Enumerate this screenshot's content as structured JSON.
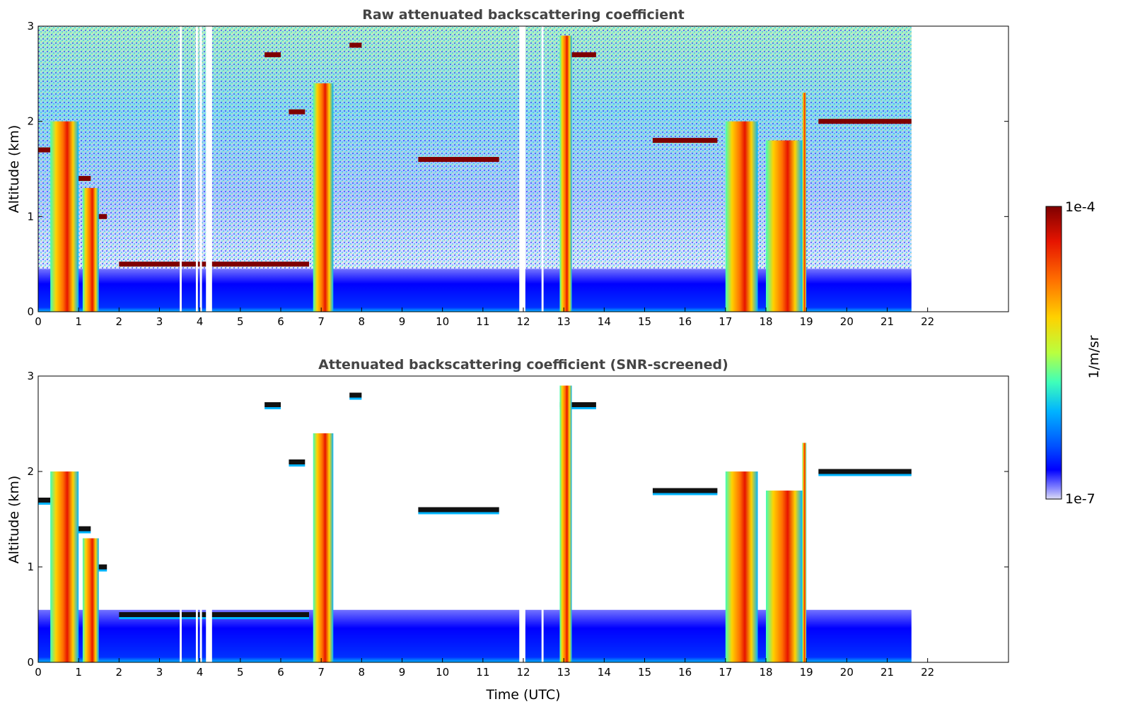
{
  "chart_data": [
    {
      "type": "heatmap",
      "title": "Raw attenuated backscattering coefficient",
      "xlabel": "",
      "ylabel": "Altitude (km)",
      "xlim": [
        0,
        24
      ],
      "ylim": [
        0,
        3
      ],
      "xticks": [
        "0",
        "1",
        "2",
        "3",
        "4",
        "5",
        "6",
        "7",
        "8",
        "9",
        "10",
        "11",
        "12",
        "13",
        "14",
        "15",
        "16",
        "17",
        "18",
        "19",
        "20",
        "21",
        "22"
      ],
      "yticks": [
        "0",
        "1",
        "2",
        "3"
      ],
      "data_end_time": 21.6,
      "boundary_layer_top_km": 0.45,
      "missing_data_intervals": [
        [
          3.5,
          3.55
        ],
        [
          3.9,
          3.95
        ],
        [
          4.0,
          4.05
        ],
        [
          4.15,
          4.3
        ],
        [
          11.9,
          12.05
        ],
        [
          12.45,
          12.5
        ]
      ],
      "precipitation_columns": [
        {
          "start": 0.3,
          "end": 1.0,
          "top_km": 2.0
        },
        {
          "start": 1.1,
          "end": 1.5,
          "top_km": 1.3
        },
        {
          "start": 6.8,
          "end": 7.3,
          "top_km": 2.4
        },
        {
          "start": 12.9,
          "end": 13.2,
          "top_km": 2.9
        },
        {
          "start": 17.0,
          "end": 17.8,
          "top_km": 2.0
        },
        {
          "start": 18.0,
          "end": 18.9,
          "top_km": 1.8
        },
        {
          "start": 18.9,
          "end": 19.0,
          "top_km": 2.3
        }
      ],
      "cloud_layers": [
        {
          "start": 0.0,
          "end": 0.3,
          "alt_km": 1.7
        },
        {
          "start": 0.6,
          "end": 1.3,
          "alt_km": 1.4
        },
        {
          "start": 1.3,
          "end": 1.7,
          "alt_km": 1.0
        },
        {
          "start": 2.0,
          "end": 4.5,
          "alt_km": 0.5
        },
        {
          "start": 4.3,
          "end": 6.7,
          "alt_km": 0.5
        },
        {
          "start": 5.6,
          "end": 6.0,
          "alt_km": 2.7
        },
        {
          "start": 6.2,
          "end": 6.6,
          "alt_km": 2.1
        },
        {
          "start": 7.7,
          "end": 8.0,
          "alt_km": 2.8
        },
        {
          "start": 9.4,
          "end": 11.4,
          "alt_km": 1.6
        },
        {
          "start": 12.9,
          "end": 13.8,
          "alt_km": 2.7
        },
        {
          "start": 15.2,
          "end": 16.8,
          "alt_km": 1.8
        },
        {
          "start": 19.3,
          "end": 21.6,
          "alt_km": 2.0
        }
      ]
    },
    {
      "type": "heatmap",
      "title": "Attenuated backscattering coefficient (SNR-screened)",
      "xlabel": "Time (UTC)",
      "ylabel": "Altitude (km)",
      "xlim": [
        0,
        24
      ],
      "ylim": [
        0,
        3
      ],
      "xticks": [
        "0",
        "1",
        "2",
        "3",
        "4",
        "5",
        "6",
        "7",
        "8",
        "9",
        "10",
        "11",
        "12",
        "13",
        "14",
        "15",
        "16",
        "17",
        "18",
        "19",
        "20",
        "21",
        "22"
      ],
      "yticks": [
        "0",
        "1",
        "2",
        "3"
      ],
      "data_end_time": 21.6,
      "screened": true
    }
  ],
  "colorbar": {
    "max_label": "1e-4",
    "min_label": "1e-7",
    "unit_label": "1/m/sr",
    "colors": [
      "#dcdcf5",
      "#7f7fff",
      "#0000ff",
      "#0050ff",
      "#00b4ff",
      "#3fffb9",
      "#b9ff3f",
      "#ffd200",
      "#ff6e00",
      "#e61400",
      "#7f0000"
    ]
  }
}
